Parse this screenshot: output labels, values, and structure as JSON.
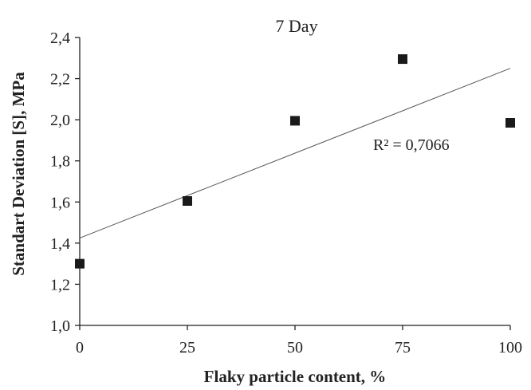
{
  "chart_data": {
    "type": "scatter",
    "title": "7 Day",
    "xlabel": "Flaky particle content, %",
    "ylabel": "Standart Deviation [S], MPa",
    "xlim": [
      0,
      100
    ],
    "ylim": [
      1.0,
      2.4
    ],
    "xticks": [
      0,
      25,
      50,
      75,
      100
    ],
    "xtick_labels": [
      "0",
      "25",
      "50",
      "75",
      "100"
    ],
    "yticks": [
      1.0,
      1.2,
      1.4,
      1.6,
      1.8,
      2.0,
      2.2,
      2.4
    ],
    "ytick_labels": [
      "1,0",
      "1,2",
      "1,4",
      "1,6",
      "1,8",
      "2,0",
      "2,2",
      "2,4"
    ],
    "grid": false,
    "legend": "none",
    "marker_color": "#1a1a1a",
    "series": [
      {
        "x": [
          0,
          25,
          50,
          75,
          100
        ],
        "y": [
          1.3,
          1.605,
          1.995,
          2.295,
          1.985
        ],
        "marker": "square"
      }
    ],
    "trendline": {
      "type": "linear",
      "x": [
        0,
        100
      ],
      "y": [
        1.425,
        2.25
      ],
      "color": "#555555"
    },
    "annotations": [
      {
        "text": "R² = 0,7066",
        "x": 77,
        "y": 1.88
      }
    ]
  }
}
